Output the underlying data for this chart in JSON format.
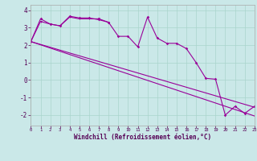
{
  "xlabel": "Windchill (Refroidissement éolien,°C)",
  "background_color": "#cae8e8",
  "grid_color": "#aad4cc",
  "line_color": "#990099",
  "line1_x": [
    0,
    1,
    2,
    3,
    4,
    5,
    6,
    7,
    8
  ],
  "line1_y": [
    2.2,
    3.35,
    3.2,
    3.1,
    3.6,
    3.5,
    3.5,
    3.5,
    3.3
  ],
  "line2_x": [
    0,
    1,
    2,
    3,
    4,
    5,
    6,
    7,
    8,
    9,
    10,
    11,
    12,
    13,
    14,
    15,
    16,
    17,
    18,
    19,
    20,
    21,
    22,
    23
  ],
  "line2_y": [
    2.2,
    3.5,
    3.2,
    3.1,
    3.65,
    3.55,
    3.55,
    3.45,
    3.3,
    2.5,
    2.5,
    1.9,
    3.6,
    2.4,
    2.1,
    2.1,
    1.8,
    1.0,
    0.1,
    0.05,
    -2.0,
    -1.5,
    -1.9,
    -1.5
  ],
  "line3_x": [
    0,
    23
  ],
  "line3_y": [
    2.2,
    -1.55
  ],
  "line4_x": [
    0,
    23
  ],
  "line4_y": [
    2.2,
    -2.05
  ],
  "ylim": [
    -2.6,
    4.3
  ],
  "xlim": [
    0,
    23
  ],
  "yticks": [
    -2,
    -1,
    0,
    1,
    2,
    3,
    4
  ],
  "xticks": [
    0,
    1,
    2,
    3,
    4,
    5,
    6,
    7,
    8,
    9,
    10,
    11,
    12,
    13,
    14,
    15,
    16,
    17,
    18,
    19,
    20,
    21,
    22,
    23
  ]
}
